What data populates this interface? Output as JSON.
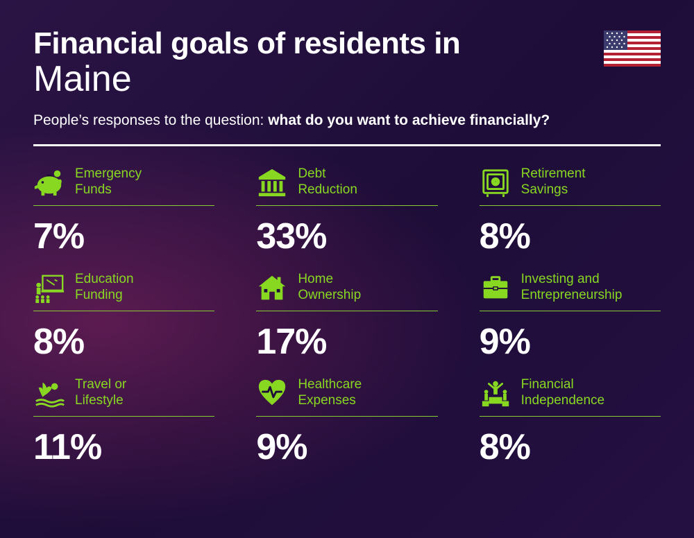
{
  "colors": {
    "accent": "#88d822",
    "underline": "#88cc33",
    "text": "#ffffff",
    "background_base": "#1e0d38"
  },
  "header": {
    "title_prefix": "Financial goals of residents in",
    "location": "Maine",
    "subtitle_lead": "People’s responses to the question: ",
    "subtitle_bold": "what do you want to achieve financially?"
  },
  "layout": {
    "type": "infographic",
    "grid_cols": 3,
    "grid_rows": 3,
    "value_fontsize": 52,
    "label_fontsize": 19,
    "title_fontsize": 44
  },
  "items": [
    {
      "icon": "piggy-bank-icon",
      "label": "Emergency\nFunds",
      "value": "7%"
    },
    {
      "icon": "bank-icon",
      "label": "Debt\nReduction",
      "value": "33%"
    },
    {
      "icon": "safe-icon",
      "label": "Retirement\nSavings",
      "value": "8%"
    },
    {
      "icon": "education-icon",
      "label": "Education\nFunding",
      "value": "8%"
    },
    {
      "icon": "home-icon",
      "label": "Home\nOwnership",
      "value": "17%"
    },
    {
      "icon": "briefcase-icon",
      "label": "Investing and\nEntrepreneurship",
      "value": "9%"
    },
    {
      "icon": "travel-icon",
      "label": "Travel or\nLifestyle",
      "value": "11%"
    },
    {
      "icon": "healthcare-icon",
      "label": "Healthcare\nExpenses",
      "value": "9%"
    },
    {
      "icon": "independence-icon",
      "label": "Financial\nIndependence",
      "value": "8%"
    }
  ]
}
